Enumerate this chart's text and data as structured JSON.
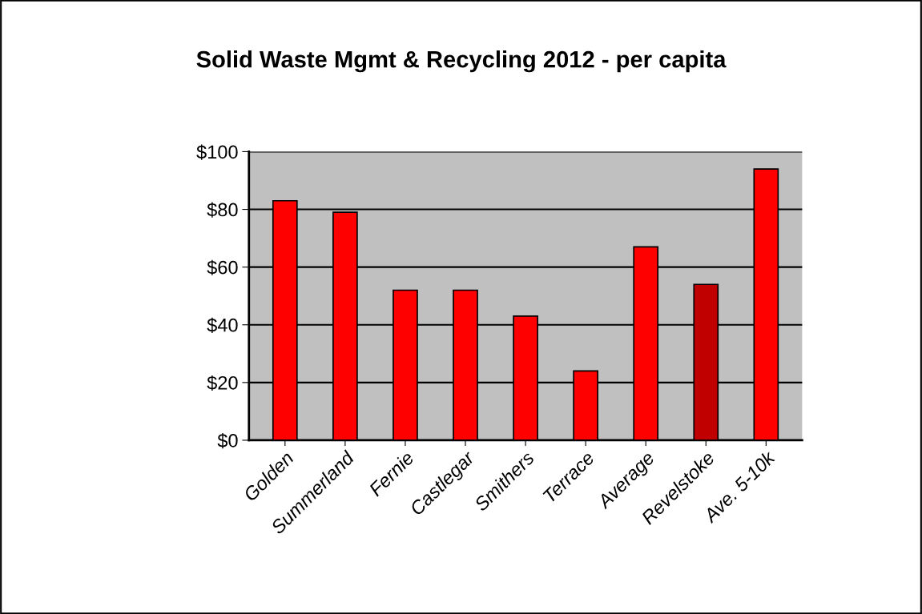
{
  "chart_data": {
    "type": "bar",
    "title": "Solid Waste Mgmt & Recycling 2012 - per capita",
    "categories": [
      "Golden",
      "Summerland",
      "Fernie",
      "Castlegar",
      "Smithers",
      "Terrace",
      "Average",
      "Revelstoke",
      "Ave. 5-10k"
    ],
    "values": [
      83,
      79,
      52,
      52,
      43,
      24,
      67,
      54,
      94
    ],
    "colors": [
      "#ff0000",
      "#ff0000",
      "#ff0000",
      "#ff0000",
      "#ff0000",
      "#ff0000",
      "#ff0000",
      "#c00000",
      "#ff0000"
    ],
    "ylim": [
      0,
      100
    ],
    "yticks": [
      {
        "value": 0,
        "label": "$0"
      },
      {
        "value": 20,
        "label": "$20"
      },
      {
        "value": 40,
        "label": "$40"
      },
      {
        "value": 60,
        "label": "$60"
      },
      {
        "value": 80,
        "label": "$80"
      },
      {
        "value": 100,
        "label": "$100"
      }
    ],
    "grid": "y"
  }
}
